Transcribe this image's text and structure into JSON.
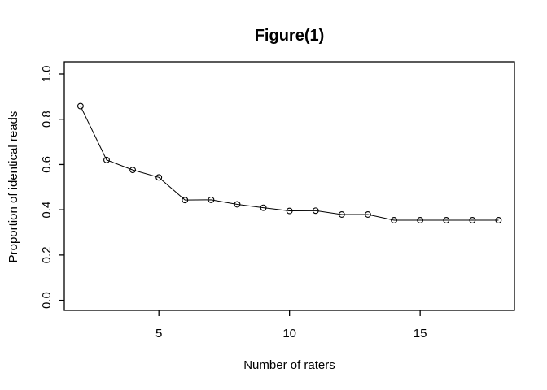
{
  "window": {
    "background": "#ffffff"
  },
  "chart_data": {
    "type": "line",
    "title": "Figure(1)",
    "xlabel": "Number of raters",
    "ylabel": "Proportion of identical reads",
    "x": [
      2,
      3,
      4,
      5,
      6,
      7,
      8,
      9,
      10,
      11,
      12,
      13,
      14,
      15,
      16,
      17,
      18
    ],
    "series": [
      {
        "name": "proportion-of-identical-reads",
        "values": [
          0.858,
          0.62,
          0.576,
          0.543,
          0.443,
          0.444,
          0.424,
          0.409,
          0.395,
          0.396,
          0.379,
          0.379,
          0.354,
          0.354,
          0.354,
          0.354,
          0.354
        ],
        "marker": "open-circle",
        "color": "#000000"
      }
    ],
    "xlim": [
      1.38,
      18.61
    ],
    "ylim": [
      -0.0445,
      1.0538
    ],
    "x_ticks": {
      "values": [
        5,
        10,
        15
      ],
      "labels": [
        "5",
        "10",
        "15"
      ]
    },
    "y_ticks": {
      "values": [
        0.0,
        0.2,
        0.4,
        0.6,
        0.8,
        1.0
      ],
      "labels": [
        "0.0",
        "0.2",
        "0.4",
        "0.6",
        "0.8",
        "1.0"
      ]
    },
    "grid": false,
    "legend": "none",
    "frame": "box",
    "axis_color": "#000000",
    "text_color": "#000000",
    "background": "#ffffff"
  }
}
